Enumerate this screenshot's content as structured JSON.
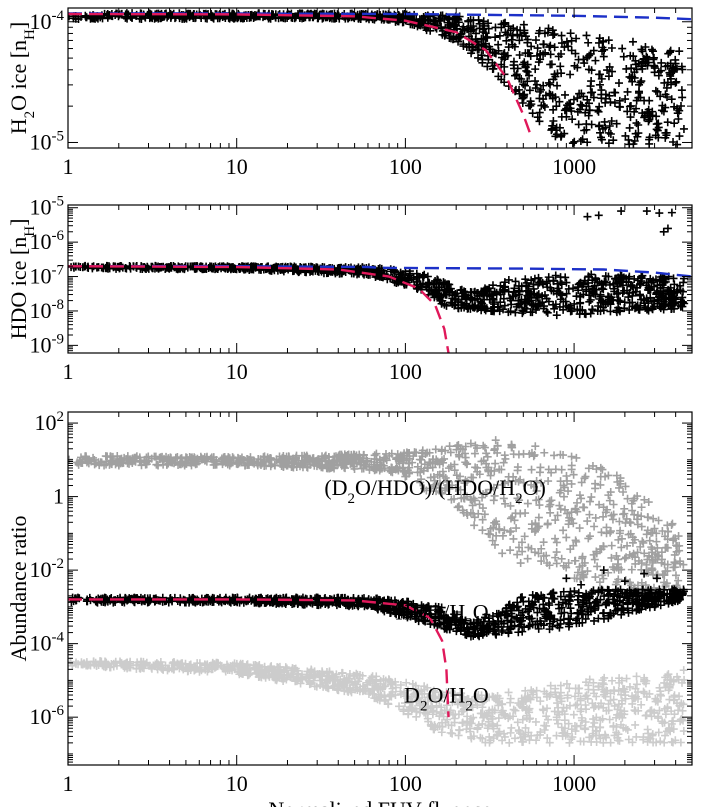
{
  "chart_data": [
    {
      "type": "scatter",
      "ylabel": "H2O ice [nH]",
      "xlabel": "",
      "xscale": "log",
      "yscale": "log",
      "xlim": [
        1,
        5000
      ],
      "ylim": [
        9e-06,
        0.00013
      ],
      "x_ticks": [
        "1",
        "10",
        "100",
        "1000"
      ],
      "x_tick_values": [
        1,
        10,
        100,
        1000
      ],
      "y_tick_values": [
        1e-05,
        0.0001
      ],
      "series": [
        {
          "kind": "markers",
          "color": "#000000",
          "marker": "+",
          "envelope": [
            {
              "x": 1,
              "lo": 0.000105,
              "hi": 0.000118
            },
            {
              "x": 10,
              "lo": 0.000106,
              "hi": 0.000118
            },
            {
              "x": 50,
              "lo": 0.000106,
              "hi": 0.000117
            },
            {
              "x": 100,
              "lo": 9.8e-05,
              "hi": 0.000116
            },
            {
              "x": 200,
              "lo": 7e-05,
              "hi": 0.000112
            },
            {
              "x": 400,
              "lo": 3e-05,
              "hi": 9.8e-05
            },
            {
              "x": 700,
              "lo": 1.2e-05,
              "hi": 9e-05
            },
            {
              "x": 1000,
              "lo": 9.5e-06,
              "hi": 8e-05
            },
            {
              "x": 2000,
              "lo": 9.5e-06,
              "hi": 7e-05
            },
            {
              "x": 4500,
              "lo": 9.5e-06,
              "hi": 6e-05
            }
          ]
        },
        {
          "kind": "line",
          "color": "#1c30c8",
          "dash": "dashed",
          "x": [
            1,
            10,
            100,
            1000,
            3000,
            5000
          ],
          "y": [
            0.000117,
            0.000117,
            0.000116,
            0.000112,
            0.000108,
            0.000105
          ]
        },
        {
          "kind": "line",
          "color": "#e0185a",
          "dash": "dashed",
          "x": [
            1,
            10,
            50,
            100,
            200,
            300,
            400,
            500,
            560
          ],
          "y": [
            0.000116,
            0.000115,
            0.000111,
            0.000102,
            8.2e-05,
            5.8e-05,
            3.4e-05,
            1.7e-05,
            1.1e-05
          ]
        }
      ]
    },
    {
      "type": "scatter",
      "ylabel": "HDO ice [nH]",
      "xlabel": "",
      "xscale": "log",
      "yscale": "log",
      "xlim": [
        1,
        5000
      ],
      "ylim": [
        6e-10,
        1.2e-05
      ],
      "x_ticks": [
        "1",
        "10",
        "100",
        "1000"
      ],
      "x_tick_values": [
        1,
        10,
        100,
        1000
      ],
      "y_tick_values": [
        1e-09,
        1e-08,
        1e-07,
        1e-06,
        1e-05
      ],
      "series": [
        {
          "kind": "markers",
          "color": "#000000",
          "marker": "+",
          "envelope": [
            {
              "x": 1,
              "lo": 1.7e-07,
              "hi": 2.1e-07
            },
            {
              "x": 10,
              "lo": 1.6e-07,
              "hi": 2e-07
            },
            {
              "x": 60,
              "lo": 1.1e-07,
              "hi": 1.9e-07
            },
            {
              "x": 120,
              "lo": 4e-08,
              "hi": 1.4e-07
            },
            {
              "x": 180,
              "lo": 1.2e-08,
              "hi": 6e-08
            },
            {
              "x": 250,
              "lo": 1.1e-08,
              "hi": 3.5e-08
            },
            {
              "x": 400,
              "lo": 9e-09,
              "hi": 8e-08
            },
            {
              "x": 1000,
              "lo": 7e-09,
              "hi": 1.2e-07
            },
            {
              "x": 4500,
              "lo": 1.2e-08,
              "hi": 1e-07
            }
          ],
          "outliers": [
            {
              "x": 1200,
              "y": 5.5e-06
            },
            {
              "x": 1400,
              "y": 6e-06
            },
            {
              "x": 1900,
              "y": 8e-06
            },
            {
              "x": 2700,
              "y": 8e-06
            },
            {
              "x": 3200,
              "y": 7e-06
            },
            {
              "x": 3800,
              "y": 7.2e-06
            },
            {
              "x": 3400,
              "y": 2e-06
            },
            {
              "x": 3600,
              "y": 2.5e-06
            }
          ]
        },
        {
          "kind": "line",
          "color": "#1c30c8",
          "dash": "dashed",
          "x": [
            1,
            10,
            60,
            70,
            500,
            1500,
            3000,
            5000
          ],
          "y": [
            2e-07,
            2e-07,
            1.9e-07,
            1.8e-07,
            1.7e-07,
            1.6e-07,
            1.3e-07,
            1e-07
          ]
        },
        {
          "kind": "line",
          "color": "#e0185a",
          "dash": "dashed",
          "x": [
            1,
            10,
            40,
            80,
            120,
            150,
            170,
            180
          ],
          "y": [
            2e-07,
            1.9e-07,
            1.6e-07,
            1e-07,
            4.5e-08,
            1.5e-08,
            3e-09,
            6e-10
          ]
        }
      ]
    },
    {
      "type": "scatter",
      "ylabel": "Abundance ratio",
      "xlabel": "Normalized FUV fluence",
      "xscale": "log",
      "yscale": "log",
      "xlim": [
        1,
        5000
      ],
      "ylim": [
        5e-08,
        200
      ],
      "x_ticks": [
        "1",
        "10",
        "100",
        "1000"
      ],
      "x_tick_values": [
        1,
        10,
        100,
        1000
      ],
      "y_tick_values": [
        1e-06,
        0.0001,
        0.01,
        1,
        100
      ],
      "series": [
        {
          "name": "(D2O/HDO)/(HDO/H2O)",
          "kind": "markers",
          "color": "#a0a0a0",
          "marker": "+",
          "envelope": [
            {
              "x": 1,
              "lo": 7,
              "hi": 13
            },
            {
              "x": 10,
              "lo": 7,
              "hi": 12
            },
            {
              "x": 80,
              "lo": 5,
              "hi": 15
            },
            {
              "x": 200,
              "lo": 0.5,
              "hi": 25
            },
            {
              "x": 400,
              "lo": 0.02,
              "hi": 40
            },
            {
              "x": 1000,
              "lo": 0.005,
              "hi": 15
            },
            {
              "x": 2000,
              "lo": 0.003,
              "hi": 3
            },
            {
              "x": 4500,
              "lo": 0.002,
              "hi": 0.1
            }
          ]
        },
        {
          "name": "HDO/H2O",
          "kind": "markers",
          "color": "#000000",
          "marker": "+",
          "envelope": [
            {
              "x": 1,
              "lo": 0.0013,
              "hi": 0.0018
            },
            {
              "x": 10,
              "lo": 0.0013,
              "hi": 0.0018
            },
            {
              "x": 60,
              "lo": 0.001,
              "hi": 0.0018
            },
            {
              "x": 150,
              "lo": 0.0003,
              "hi": 0.0012
            },
            {
              "x": 250,
              "lo": 0.00015,
              "hi": 0.0004
            },
            {
              "x": 500,
              "lo": 0.0002,
              "hi": 0.002
            },
            {
              "x": 1000,
              "lo": 0.0003,
              "hi": 0.003
            },
            {
              "x": 4500,
              "lo": 0.0015,
              "hi": 0.003
            }
          ],
          "outliers": [
            {
              "x": 1500,
              "y": 0.01
            },
            {
              "x": 2000,
              "y": 0.005
            },
            {
              "x": 2600,
              "y": 0.008
            },
            {
              "x": 3100,
              "y": 0.006
            },
            {
              "x": 1100,
              "y": 0.004
            },
            {
              "x": 900,
              "y": 0.006
            }
          ]
        },
        {
          "name": "D2O/H2O",
          "kind": "markers",
          "color": "#cccccc",
          "marker": "+",
          "envelope": [
            {
              "x": 1,
              "lo": 2.5e-05,
              "hi": 3.5e-05
            },
            {
              "x": 10,
              "lo": 1.5e-05,
              "hi": 3e-05
            },
            {
              "x": 60,
              "lo": 4e-06,
              "hi": 1.5e-05
            },
            {
              "x": 150,
              "lo": 4e-07,
              "hi": 6e-06
            },
            {
              "x": 300,
              "lo": 2e-07,
              "hi": 4e-06
            },
            {
              "x": 1000,
              "lo": 2e-07,
              "hi": 1e-05
            },
            {
              "x": 4500,
              "lo": 2e-07,
              "hi": 2e-05
            }
          ]
        },
        {
          "kind": "line",
          "color": "#e0185a",
          "dash": "dashed",
          "x": [
            1,
            10,
            50,
            100,
            140,
            165,
            175,
            180
          ],
          "y": [
            0.0016,
            0.0016,
            0.0015,
            0.0011,
            0.0005,
            0.00012,
            2e-05,
            1e-06
          ]
        }
      ],
      "annotations": [
        {
          "text": "(D2O/HDO)/(HDO/H2O)",
          "color": "#a0a0a0",
          "x": 150,
          "y": 1.1
        },
        {
          "text": "HDO/H2O",
          "color": "#000000",
          "x": 165,
          "y": 0.00045
        },
        {
          "text": "D2O/H2O",
          "color": "#cccccc",
          "x": 175,
          "y": 2.5e-06
        }
      ]
    }
  ]
}
